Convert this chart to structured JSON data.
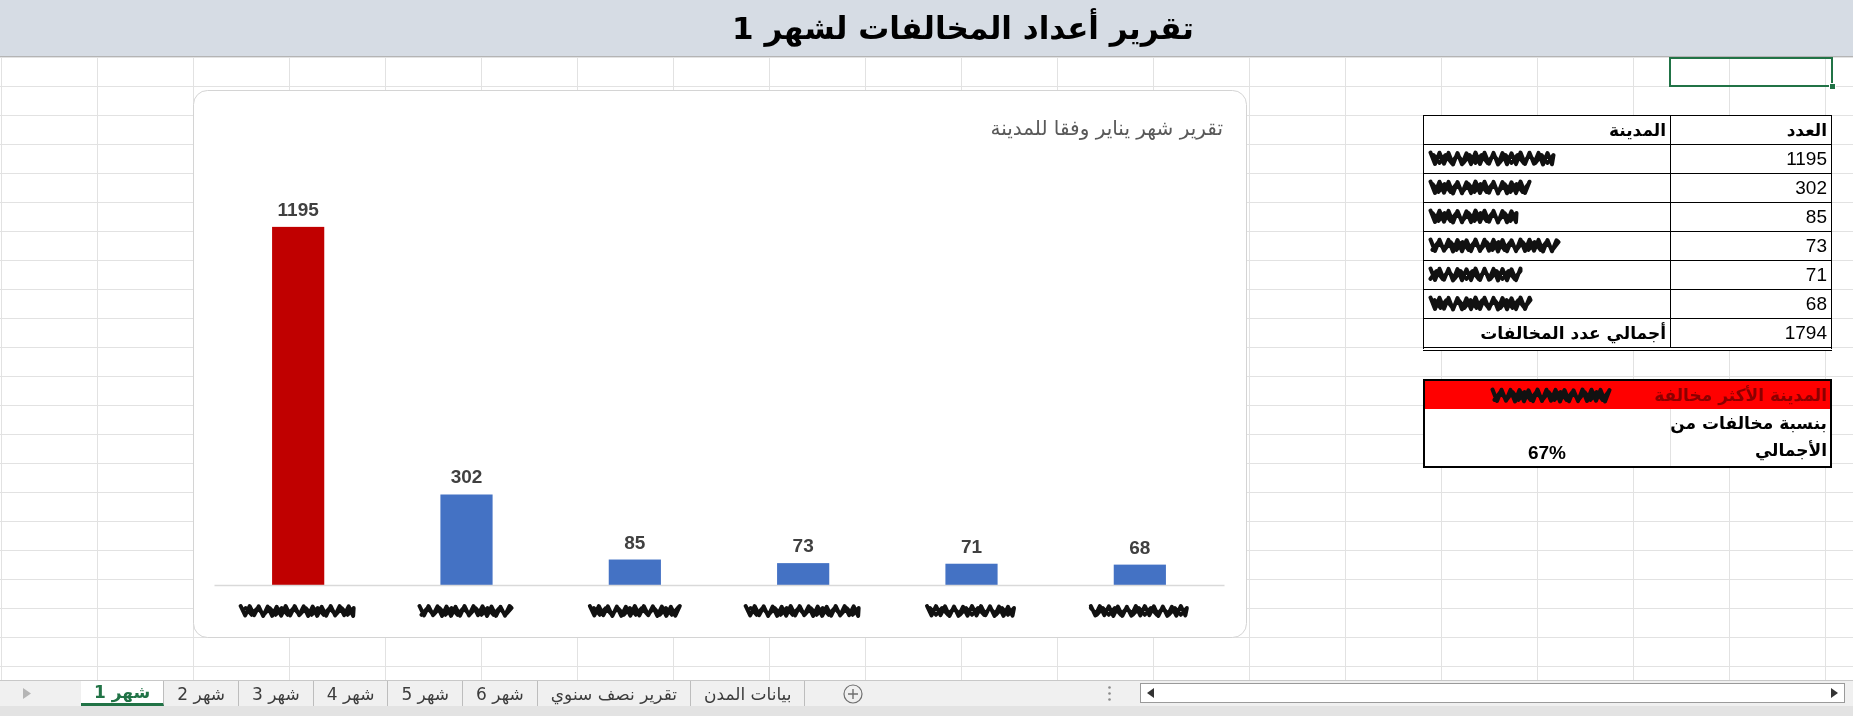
{
  "chart_data": [
    {
      "type": "bar",
      "title": "تقرير شهر يناير وفقا للمدينة",
      "categories": [
        null,
        null,
        null,
        null,
        null,
        null
      ],
      "values": [
        1195,
        302,
        85,
        73,
        71,
        68
      ],
      "colors": [
        "#c00000",
        "#4472c4",
        "#4472c4",
        "#4472c4",
        "#4472c4",
        "#4472c4"
      ],
      "data_labels": true
    },
    {
      "type": "other",
      "title": "تقرير أعداد المخالفات لشهر 1",
      "annotations": [
        "العدد",
        "المدينة",
        "1195",
        "302",
        "85",
        "73",
        "71",
        "68",
        "1794",
        "أجمالي عدد المخالفات",
        "المدينة الأكثر مخالفة",
        "بنسبة مخالفات من الأجمالي",
        "67%",
        "شهر 1",
        "شهر 2",
        "شهر 3",
        "شهر 4",
        "شهر 5",
        "شهر 6",
        "تقرير نصف سنوي",
        "بيانات المدن"
      ]
    }
  ]
}
